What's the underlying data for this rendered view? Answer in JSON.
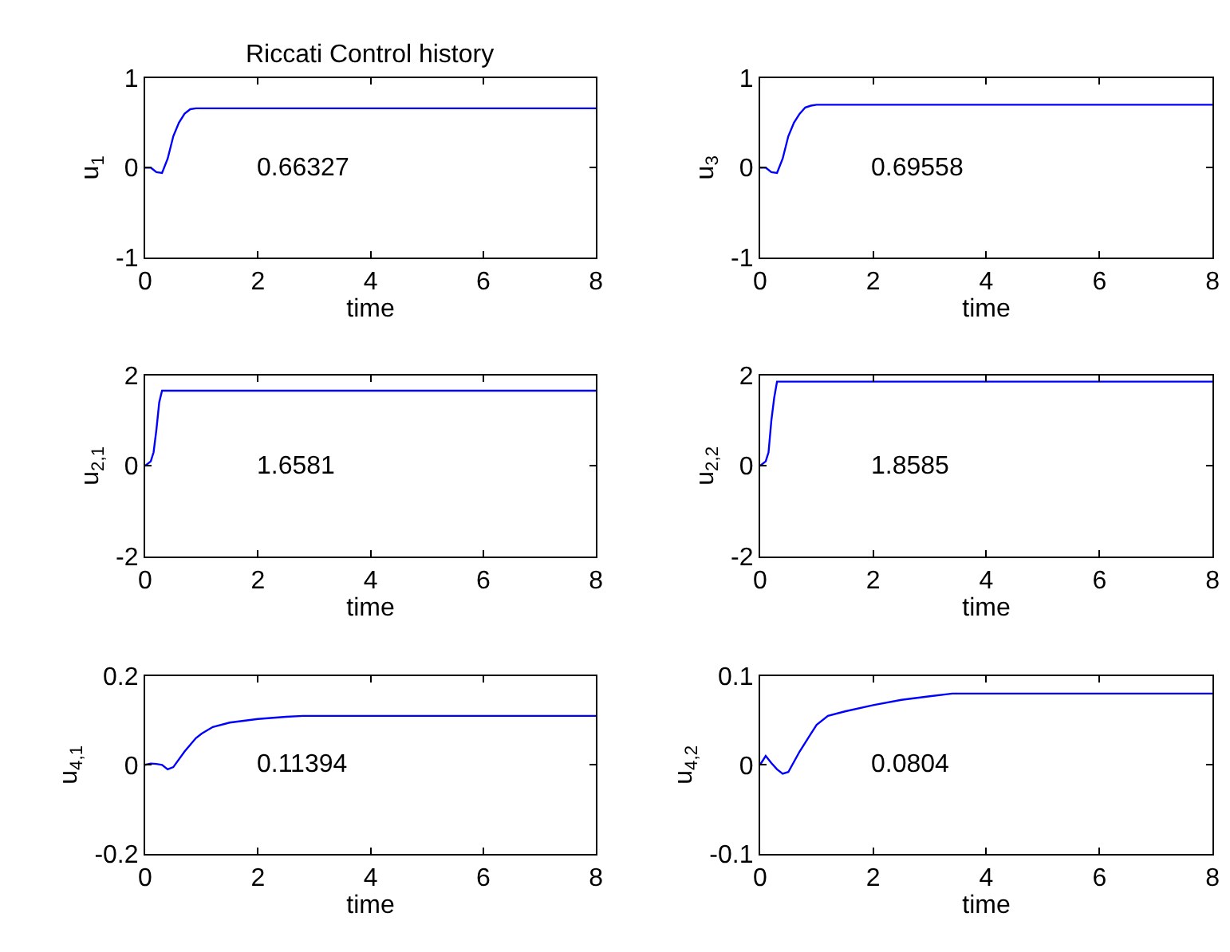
{
  "chart_data": [
    {
      "type": "line",
      "title": "Riccati Control history",
      "xlabel": "time",
      "ylabel": "u$_{1}$",
      "color": "#0000ff",
      "xlim": [
        0,
        8
      ],
      "ylim": [
        -1,
        1
      ],
      "xticks": [
        0,
        2,
        4,
        6,
        8
      ],
      "yticks": [
        -1,
        0,
        1
      ],
      "annotations": [
        "0.66327"
      ],
      "x": [
        0,
        0.1,
        0.2,
        0.3,
        0.4,
        0.5,
        0.6,
        0.7,
        0.8,
        0.9,
        1.0,
        8
      ],
      "values": [
        0,
        0,
        -0.05,
        -0.06,
        0.1,
        0.35,
        0.5,
        0.6,
        0.65,
        0.66,
        0.66,
        0.66
      ]
    },
    {
      "type": "line",
      "xlabel": "time",
      "ylabel": "u$_{3}$",
      "color": "#0000ff",
      "xlim": [
        0,
        8
      ],
      "ylim": [
        -1,
        1
      ],
      "xticks": [
        0,
        2,
        4,
        6,
        8
      ],
      "yticks": [
        -1,
        0,
        1
      ],
      "annotations": [
        "0.69558"
      ],
      "x": [
        0,
        0.1,
        0.2,
        0.3,
        0.4,
        0.5,
        0.6,
        0.7,
        0.8,
        0.9,
        1.0,
        8
      ],
      "values": [
        0,
        0,
        -0.05,
        -0.06,
        0.1,
        0.35,
        0.5,
        0.6,
        0.67,
        0.69,
        0.7,
        0.7
      ]
    },
    {
      "type": "line",
      "xlabel": "time",
      "ylabel": "u$_{2,1}$",
      "color": "#0000ff",
      "xlim": [
        0,
        8
      ],
      "ylim": [
        -2,
        2
      ],
      "xticks": [
        0,
        2,
        4,
        6,
        8
      ],
      "yticks": [
        -2,
        0,
        2
      ],
      "annotations": [
        "1.6581"
      ],
      "x": [
        0,
        0.1,
        0.15,
        0.2,
        0.25,
        0.3,
        8
      ],
      "values": [
        0,
        0.1,
        0.3,
        0.8,
        1.4,
        1.66,
        1.66
      ]
    },
    {
      "type": "line",
      "xlabel": "time",
      "ylabel": "u$_{2,2}$",
      "color": "#0000ff",
      "xlim": [
        0,
        8
      ],
      "ylim": [
        -2,
        2
      ],
      "xticks": [
        0,
        2,
        4,
        6,
        8
      ],
      "yticks": [
        -2,
        0,
        2
      ],
      "annotations": [
        "1.8585"
      ],
      "x": [
        0,
        0.1,
        0.15,
        0.2,
        0.25,
        0.3,
        8
      ],
      "values": [
        0,
        0.1,
        0.3,
        1.0,
        1.5,
        1.86,
        1.86
      ]
    },
    {
      "type": "line",
      "xlabel": "time",
      "ylabel": "u$_{4,1}$",
      "color": "#0000ff",
      "xlim": [
        0,
        8
      ],
      "ylim": [
        -0.2,
        0.2
      ],
      "xticks": [
        0,
        2,
        4,
        6,
        8
      ],
      "yticks": [
        -0.2,
        0,
        0.2
      ],
      "annotations": [
        "0.11394"
      ],
      "x": [
        0,
        0.1,
        0.2,
        0.3,
        0.4,
        0.5,
        0.7,
        0.9,
        1.0,
        1.2,
        1.5,
        2,
        2.5,
        2.8,
        8
      ],
      "values": [
        0,
        0.003,
        0.002,
        0.0,
        -0.01,
        -0.005,
        0.03,
        0.06,
        0.07,
        0.085,
        0.095,
        0.103,
        0.108,
        0.11,
        0.11
      ]
    },
    {
      "type": "line",
      "xlabel": "time",
      "ylabel": "u$_{4,2}$",
      "color": "#0000ff",
      "xlim": [
        0,
        8
      ],
      "ylim": [
        -0.1,
        0.1
      ],
      "xticks": [
        0,
        2,
        4,
        6,
        8
      ],
      "yticks": [
        -0.1,
        0,
        0.1
      ],
      "annotations": [
        "0.0804"
      ],
      "x": [
        0,
        0.1,
        0.2,
        0.3,
        0.4,
        0.5,
        0.7,
        0.9,
        1.0,
        1.2,
        1.5,
        2,
        2.5,
        3,
        3.4,
        8
      ],
      "values": [
        0,
        0.01,
        0.002,
        -0.005,
        -0.01,
        -0.008,
        0.015,
        0.035,
        0.045,
        0.055,
        0.06,
        0.067,
        0.073,
        0.077,
        0.08,
        0.08
      ]
    }
  ]
}
